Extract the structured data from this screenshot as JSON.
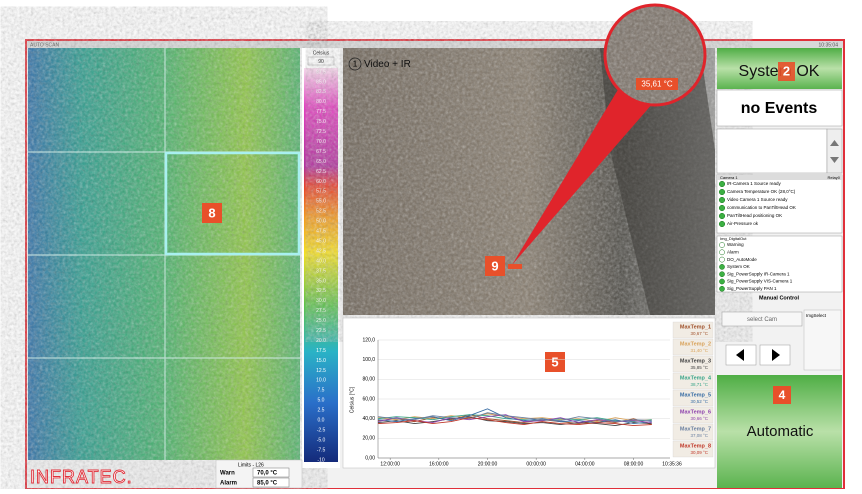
{
  "title_bar": {
    "left": "AUTO SCAN",
    "right": "10:35:04"
  },
  "thermal": {
    "marker": "8"
  },
  "scale": {
    "unit": "Celsius",
    "max": "90",
    "labels": [
      "87.5",
      "85.0",
      "82.5",
      "80.0",
      "77.5",
      "75.0",
      "72.5",
      "70.0",
      "67.5",
      "65.0",
      "62.5",
      "60.0",
      "57.5",
      "55.0",
      "52.5",
      "50.0",
      "47.5",
      "45.0",
      "42.5",
      "40.0",
      "37.5",
      "35.0",
      "32.5",
      "30.0",
      "27.5",
      "25.0",
      "22.5",
      "20.0",
      "17.5",
      "15.0",
      "12.5",
      "10.0",
      "7.5",
      "5.0",
      "2.5",
      "0.0",
      "-2.5",
      "-5.0",
      "-7.5",
      "-10"
    ]
  },
  "video": {
    "index": "1",
    "title": "Video + IR",
    "zoom_temp": "35,61 °C",
    "marker": "9"
  },
  "chart": {
    "type": "line",
    "marker": "5",
    "y_label": "Celsius [°C]",
    "ylim": [
      0,
      120
    ],
    "yticks": [
      {
        "value": 0,
        "label": "0,00"
      },
      {
        "value": 20,
        "label": "20,00"
      },
      {
        "value": 40,
        "label": "40,00"
      },
      {
        "value": 60,
        "label": "60,00"
      },
      {
        "value": 80,
        "label": "80,00"
      },
      {
        "value": 100,
        "label": "100,0"
      },
      {
        "value": 120,
        "label": "120,0"
      }
    ],
    "xlim": [
      0,
      24
    ],
    "xticks": [
      {
        "value": 1,
        "label": "12:00:00"
      },
      {
        "value": 5,
        "label": "16:00:00"
      },
      {
        "value": 9,
        "label": "20:00:00"
      },
      {
        "value": 13,
        "label": "00:00:00"
      },
      {
        "value": 17,
        "label": "04:00:00"
      },
      {
        "value": 21,
        "label": "08:00:00"
      }
    ],
    "end_label": "10:35:36",
    "x": [
      0,
      1.5,
      3,
      4.5,
      6,
      7.5,
      9,
      10.5,
      12,
      13.5,
      15,
      16.5,
      18,
      19.5,
      21,
      22.5
    ],
    "series": [
      {
        "name": "MaxTemp_1",
        "value_label": "30,67 °C",
        "color": "#a0522d",
        "values": [
          38,
          40,
          37,
          41,
          39,
          44,
          40,
          38,
          36,
          39,
          37,
          35,
          38,
          36,
          40,
          34
        ]
      },
      {
        "name": "MaxTemp_2",
        "value_label": "31,40 °C",
        "color": "#d9a35b",
        "values": [
          41,
          39,
          42,
          40,
          43,
          41,
          45,
          42,
          40,
          41,
          39,
          40,
          37,
          41,
          38,
          39
        ]
      },
      {
        "name": "MaxTemp_3",
        "value_label": "35,85 °C",
        "color": "#444444",
        "values": [
          36,
          38,
          35,
          37,
          40,
          42,
          38,
          37,
          35,
          36,
          34,
          36,
          35,
          33,
          36,
          35
        ]
      },
      {
        "name": "MaxTemp_4",
        "value_label": "38,71 °C",
        "color": "#3aa58a",
        "values": [
          40,
          42,
          41,
          39,
          42,
          44,
          43,
          40,
          39,
          38,
          40,
          39,
          41,
          38,
          37,
          39
        ]
      },
      {
        "name": "MaxTemp_5",
        "value_label": "30,52 °C",
        "color": "#3a6ea5",
        "values": [
          39,
          37,
          40,
          42,
          38,
          43,
          50,
          41,
          38,
          40,
          37,
          38,
          36,
          39,
          35,
          37
        ]
      },
      {
        "name": "MaxTemp_6",
        "value_label": "30,66 °C",
        "color": "#8e44ad",
        "values": [
          37,
          41,
          38,
          36,
          41,
          39,
          42,
          44,
          37,
          38,
          41,
          36,
          39,
          37,
          38,
          36
        ]
      },
      {
        "name": "MaxTemp_7",
        "value_label": "37,08 °C",
        "color": "#6a7fa0",
        "values": [
          42,
          40,
          39,
          43,
          41,
          40,
          46,
          43,
          41,
          39,
          38,
          42,
          40,
          37,
          39,
          38
        ]
      },
      {
        "name": "MaxTemp_8",
        "value_label": "30,09 °C",
        "color": "#c0392b",
        "values": [
          35,
          36,
          38,
          35,
          37,
          41,
          39,
          36,
          34,
          37,
          35,
          34,
          36,
          35,
          33,
          34
        ]
      }
    ]
  },
  "status": {
    "system": "System OK",
    "system_marker": "2",
    "events": "no Events",
    "camera_header": "Camera 1",
    "camera_relay": "Relay0",
    "camera_items": [
      "IR-Camera 1 Source ready",
      "Camera Temperature OK (28,0°C)",
      "Video Camera 1 Source ready",
      "communication to PanTiltHead OK",
      "PanTiltHead positioning OK",
      "Air-Pressure ok"
    ],
    "digital_header": "Img_DigitalOut",
    "digital_items": [
      "Warning",
      "Alarm",
      "DO_AutoMode",
      "System OK",
      "Sig_PowerSupply IR-Camera 1",
      "Sig_PowerSupply VIS-Camera 1",
      "Sig_PowerSupply PAN 1"
    ],
    "manual": "Manual Control",
    "select_cam": "select Cam",
    "img_select": "ImgSelect",
    "mode_marker": "4",
    "mode": "Automatic"
  },
  "limits": {
    "title": "Limits - L26",
    "warn_label": "Warn",
    "warn_value": "70,0 °C",
    "alarm_label": "Alarm",
    "alarm_value": "85,0 °C"
  },
  "logo": "INFRATEC."
}
